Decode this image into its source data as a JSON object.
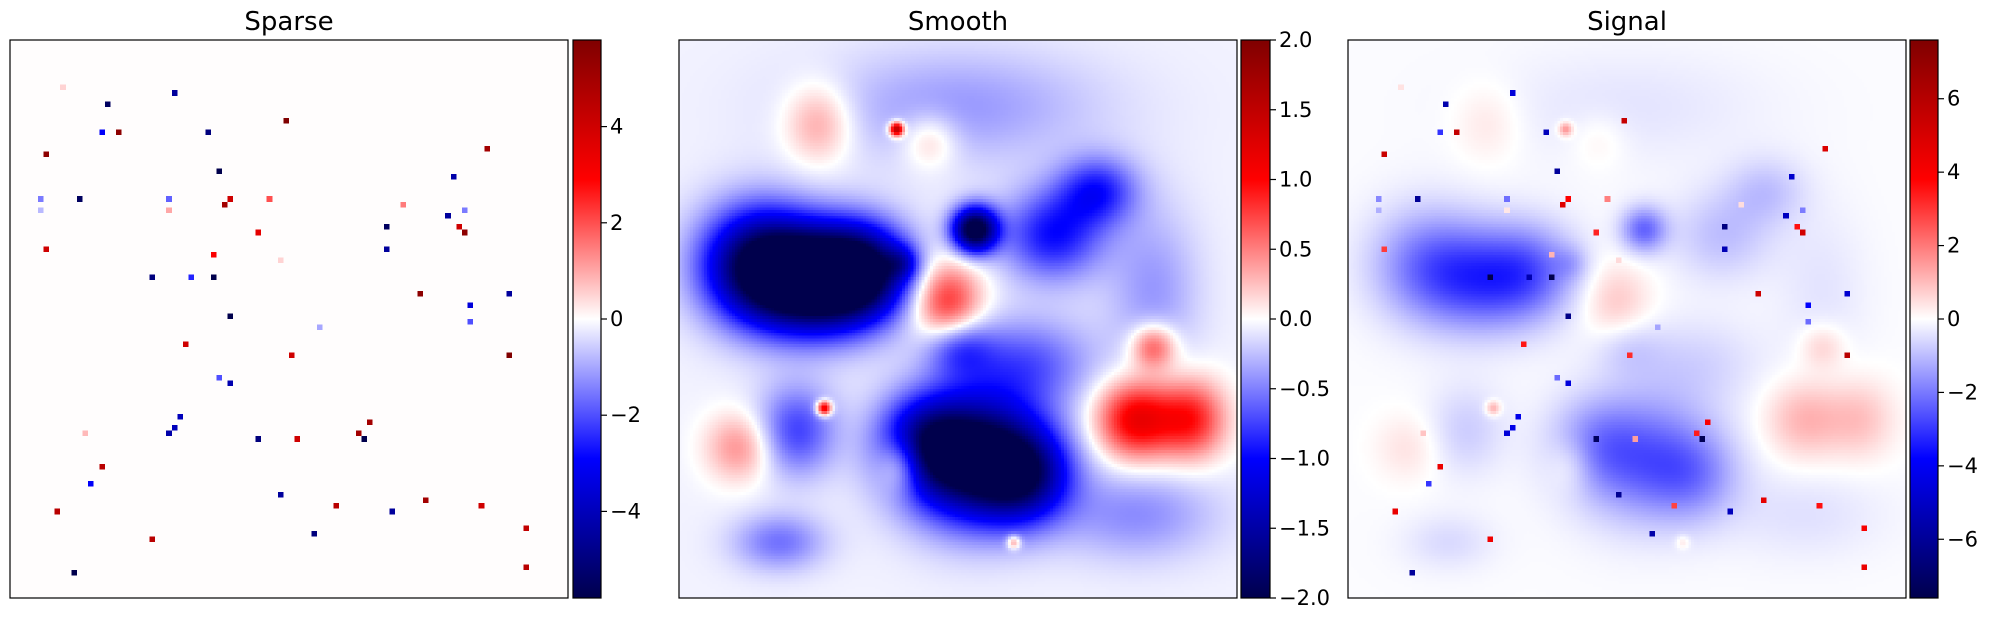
{
  "chart_data": [
    {
      "type": "heatmap",
      "title": "Sparse",
      "colormap": "seismic",
      "vlim": [
        -5.8,
        5.8
      ],
      "colorbar_ticks": [
        {
          "value": 4,
          "label": "4"
        },
        {
          "value": 2,
          "label": "2"
        },
        {
          "value": 0,
          "label": "0"
        },
        {
          "value": -2,
          "label": "−2"
        },
        {
          "value": -4,
          "label": "−4"
        }
      ],
      "grid_size": [
        100,
        100
      ],
      "background_value": 0.02,
      "points": [
        [
          9,
          8,
          0.5
        ],
        [
          17,
          11,
          -5.5
        ],
        [
          29,
          9,
          -4.5
        ],
        [
          49,
          14,
          5.8
        ],
        [
          16,
          16,
          -3
        ],
        [
          19,
          16,
          5.5
        ],
        [
          35,
          16,
          -5
        ],
        [
          85,
          19,
          5
        ],
        [
          6,
          20,
          5.5
        ],
        [
          37,
          23,
          -5.8
        ],
        [
          79,
          24,
          -4.3
        ],
        [
          5,
          28,
          -1.5
        ],
        [
          12,
          28,
          -5.5
        ],
        [
          28,
          28,
          -1.8
        ],
        [
          38,
          29,
          5
        ],
        [
          39,
          28,
          4
        ],
        [
          46,
          28,
          2
        ],
        [
          70,
          29,
          1.5
        ],
        [
          81,
          30,
          -1.5
        ],
        [
          5,
          30,
          -0.8
        ],
        [
          28,
          30,
          1
        ],
        [
          78,
          31,
          -4.5
        ],
        [
          67,
          33,
          -5.5
        ],
        [
          80,
          33,
          4
        ],
        [
          81,
          34,
          5.5
        ],
        [
          44,
          34,
          3.5
        ],
        [
          67,
          37,
          -4.5
        ],
        [
          6,
          37,
          4
        ],
        [
          36,
          38,
          3
        ],
        [
          48,
          39,
          0.5
        ],
        [
          25,
          42,
          -5
        ],
        [
          32,
          42,
          -2.5
        ],
        [
          36,
          42,
          -5.8
        ],
        [
          89,
          45,
          -4.5
        ],
        [
          73,
          45,
          5.5
        ],
        [
          82,
          47,
          -3.5
        ],
        [
          39,
          49,
          -5.8
        ],
        [
          55,
          51,
          -1
        ],
        [
          82,
          50,
          -2
        ],
        [
          31,
          54,
          4
        ],
        [
          50,
          56,
          4
        ],
        [
          89,
          56,
          5.8
        ],
        [
          37,
          60,
          -2
        ],
        [
          39,
          61,
          -4.2
        ],
        [
          30,
          67,
          -4
        ],
        [
          29,
          69,
          -4
        ],
        [
          28,
          70,
          -4.3
        ],
        [
          64,
          68,
          5
        ],
        [
          13,
          70,
          0.8
        ],
        [
          44,
          71,
          -5
        ],
        [
          51,
          71,
          4
        ],
        [
          62,
          70,
          5
        ],
        [
          63,
          71,
          -5.8
        ],
        [
          16,
          76,
          4.5
        ],
        [
          14,
          79,
          -3
        ],
        [
          48,
          81,
          -4.5
        ],
        [
          58,
          83,
          4.5
        ],
        [
          74,
          82,
          5
        ],
        [
          68,
          84,
          -4.5
        ],
        [
          84,
          83,
          4
        ],
        [
          8,
          84,
          4.5
        ],
        [
          54,
          88,
          -5
        ],
        [
          25,
          89,
          4.5
        ],
        [
          92,
          87,
          4.3
        ],
        [
          11,
          95,
          -5.8
        ],
        [
          92,
          94,
          4.5
        ]
      ]
    },
    {
      "type": "heatmap",
      "title": "Smooth",
      "colormap": "seismic",
      "vlim": [
        -2.0,
        2.0
      ],
      "colorbar_ticks": [
        {
          "value": 2.0,
          "label": "2.0"
        },
        {
          "value": 1.5,
          "label": "1.5"
        },
        {
          "value": 1.0,
          "label": "1.0"
        },
        {
          "value": 0.5,
          "label": "0.5"
        },
        {
          "value": 0.0,
          "label": "0.0"
        },
        {
          "value": -0.5,
          "label": "−0.5"
        },
        {
          "value": -1.0,
          "label": "−1.0"
        },
        {
          "value": -1.5,
          "label": "−1.5"
        },
        {
          "value": -2.0,
          "label": "−2.0"
        }
      ],
      "grid_size": [
        100,
        100
      ],
      "blobs": [
        [
          25,
          43,
          12,
          9,
          -2.6
        ],
        [
          14,
          40,
          10,
          10,
          -1.6
        ],
        [
          33,
          41,
          8,
          8,
          -1.2
        ],
        [
          53,
          75,
          12,
          11,
          -2.2
        ],
        [
          62,
          78,
          8,
          8,
          -1.2
        ],
        [
          44,
          72,
          8,
          8,
          -1.0
        ],
        [
          67,
          35,
          9,
          8,
          -0.9
        ],
        [
          75,
          27,
          7,
          6,
          -0.8
        ],
        [
          50,
          55,
          6,
          5,
          -0.6
        ],
        [
          18,
          90,
          8,
          5,
          -0.5
        ],
        [
          82,
          85,
          14,
          8,
          -0.4
        ],
        [
          62,
          58,
          12,
          8,
          -0.6
        ],
        [
          50,
          12,
          25,
          10,
          -0.35
        ],
        [
          85,
          45,
          8,
          15,
          -0.35
        ],
        [
          21,
          70,
          7,
          8,
          -0.7
        ],
        [
          53,
          34,
          4,
          4,
          -2.2
        ],
        [
          40,
          40,
          3,
          3,
          -0.6
        ],
        [
          25,
          15,
          6,
          7,
          0.45
        ],
        [
          45,
          18,
          5,
          5,
          0.35
        ],
        [
          48,
          47,
          6,
          7,
          0.9
        ],
        [
          82,
          68,
          7,
          7,
          1.2
        ],
        [
          92,
          68,
          6,
          7,
          0.9
        ],
        [
          85,
          55,
          4,
          4,
          0.8
        ],
        [
          11,
          73,
          6,
          6,
          0.5
        ],
        [
          40,
          76,
          4,
          5,
          0.7
        ],
        [
          39,
          16,
          1.2,
          1.2,
          1.8
        ],
        [
          26,
          66,
          1.3,
          1.3,
          1.5
        ],
        [
          60,
          90,
          1.2,
          1.2,
          0.7
        ]
      ]
    },
    {
      "type": "heatmap",
      "title": "Signal",
      "colormap": "seismic",
      "vlim": [
        -7.6,
        7.6
      ],
      "colorbar_ticks": [
        {
          "value": 6,
          "label": "6"
        },
        {
          "value": 4,
          "label": "4"
        },
        {
          "value": 2,
          "label": "2"
        },
        {
          "value": 0,
          "label": "0"
        },
        {
          "value": -2,
          "label": "−2"
        },
        {
          "value": -4,
          "label": "−4"
        },
        {
          "value": -6,
          "label": "−6"
        }
      ],
      "composition": "Sparse + Smooth"
    }
  ]
}
